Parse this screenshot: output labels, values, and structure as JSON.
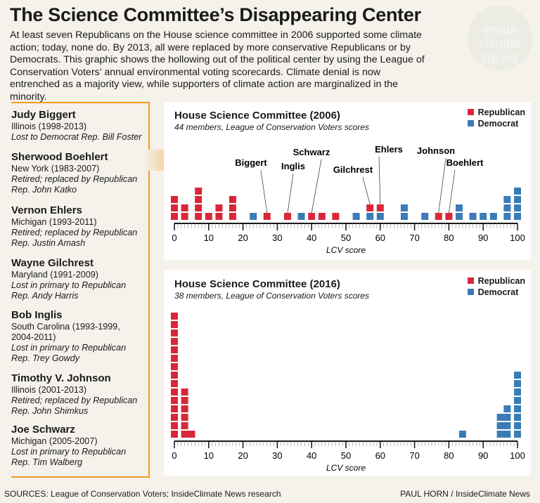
{
  "title": "The Science Committee’s Disappearing Center",
  "intro": "At least seven Republicans on the House science committee in 2006 supported some climate action; today, none do. By 2013, all were replaced by more conservative Republicans or by Democrats. This graphic shows the hollowing out of the political center by using the League of Conservation Voters’ annual environmental voting scorecards. Climate denial is now entrenched as a majority view, while supporters of climate action are marginalized in the minority.",
  "logo": {
    "line1": "inside",
    "line2": "climate",
    "line3": "news"
  },
  "colors": {
    "republican": "#d9273a",
    "democrat": "#3b7bb6",
    "accent": "#f29a1f",
    "background": "#f4f2ea"
  },
  "members": [
    {
      "name": "Judy Biggert",
      "state": "Illinois (1998-2013)",
      "fate": "Lost to Democrat Rep. Bill Foster"
    },
    {
      "name": "Sherwood Boehlert",
      "state": "New York (1983-2007)",
      "fate": "Retired; replaced by Republican Rep. John Katko"
    },
    {
      "name": "Vernon Ehlers",
      "state": "Michigan (1993-2011)",
      "fate": "Retired; replaced by Republican Rep. Justin Amash"
    },
    {
      "name": "Wayne Gilchrest",
      "state": "Maryland (1991-2009)",
      "fate": "Lost in primary to Republican Rep. Andy Harris"
    },
    {
      "name": "Bob Inglis",
      "state": "South Carolina (1993-1999, 2004-2011)",
      "fate": "Lost in primary to Republican Rep. Trey Gowdy"
    },
    {
      "name": "Timothy V. Johnson",
      "state": "Illinois (2001-2013)",
      "fate": "Retired; replaced by Republican Rep. John Shimkus"
    },
    {
      "name": "Joe Schwarz",
      "state": "Michigan (2005-2007)",
      "fate": "Lost in primary to Republican Rep. Tim Walberg"
    }
  ],
  "chart_data": [
    {
      "type": "scatter",
      "title": "House Science Committee (2006)",
      "subtitle": "44 members, League of Conservation Voters scores",
      "xlabel": "LCV score",
      "xlim": [
        0,
        100
      ],
      "xticks": [
        "0",
        "10",
        "20",
        "30",
        "40",
        "50",
        "60",
        "70",
        "80",
        "90",
        "100"
      ],
      "legend": {
        "position": "top-right",
        "entries": [
          "Republican",
          "Democrat"
        ]
      },
      "series": [
        {
          "name": "Democrat",
          "stacks": [
            [
              23,
              1
            ],
            [
              37,
              1
            ],
            [
              53,
              1
            ],
            [
              57,
              1
            ],
            [
              60,
              1
            ],
            [
              67,
              2
            ],
            [
              73,
              1
            ],
            [
              83,
              2
            ],
            [
              87,
              1
            ],
            [
              90,
              1
            ],
            [
              93,
              1
            ],
            [
              97,
              3
            ],
            [
              100,
              4
            ]
          ]
        },
        {
          "name": "Republican",
          "stacks": [
            [
              0,
              3
            ],
            [
              3,
              2
            ],
            [
              7,
              4
            ],
            [
              10,
              1
            ],
            [
              13,
              2
            ],
            [
              17,
              3
            ],
            [
              27,
              1
            ],
            [
              33,
              1
            ],
            [
              40,
              1
            ],
            [
              43,
              1
            ],
            [
              47,
              1
            ],
            [
              57,
              1
            ],
            [
              60,
              1
            ],
            [
              77,
              1
            ],
            [
              80,
              1
            ]
          ]
        }
      ],
      "annotations": [
        {
          "label": "Biggert",
          "score": 27
        },
        {
          "label": "Inglis",
          "score": 33
        },
        {
          "label": "Schwarz",
          "score": 40
        },
        {
          "label": "Gilchrest",
          "score": 57
        },
        {
          "label": "Ehlers",
          "score": 60
        },
        {
          "label": "Johnson",
          "score": 77
        },
        {
          "label": "Boehlert",
          "score": 80
        }
      ]
    },
    {
      "type": "scatter",
      "title": "House Science Committee (2016)",
      "subtitle": "38 members, League of Conservation Voters scores",
      "xlabel": "LCV score",
      "xlim": [
        0,
        100
      ],
      "xticks": [
        "0",
        "10",
        "20",
        "30",
        "40",
        "50",
        "60",
        "70",
        "80",
        "90",
        "100"
      ],
      "legend": {
        "position": "top-right",
        "entries": [
          "Republican",
          "Democrat"
        ]
      },
      "series": [
        {
          "name": "Democrat",
          "stacks": [
            [
              84,
              1
            ],
            [
              95,
              3
            ],
            [
              97,
              4
            ],
            [
              100,
              8
            ]
          ]
        },
        {
          "name": "Republican",
          "stacks": [
            [
              0,
              15
            ],
            [
              3,
              6
            ],
            [
              5,
              1
            ]
          ]
        }
      ],
      "annotations": []
    }
  ],
  "footer": {
    "sources": "SOURCES: League of Conservation Voters; InsideClimate News research",
    "credit": "PAUL HORN / InsideClimate News"
  }
}
